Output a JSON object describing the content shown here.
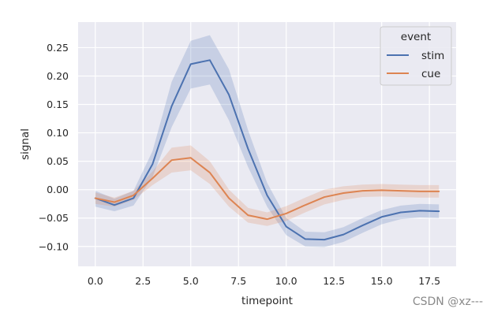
{
  "chart_data": {
    "type": "line",
    "title": "",
    "xlabel": "timepoint",
    "ylabel": "signal",
    "xlim": [
      -0.9,
      18.9
    ],
    "ylim": [
      -0.135,
      0.295
    ],
    "xticks": [
      0.0,
      2.5,
      5.0,
      7.5,
      10.0,
      12.5,
      15.0,
      17.5
    ],
    "xtick_labels": [
      "0.0",
      "2.5",
      "5.0",
      "7.5",
      "10.0",
      "12.5",
      "15.0",
      "17.5"
    ],
    "yticks": [
      -0.1,
      -0.05,
      0.0,
      0.05,
      0.1,
      0.15,
      0.2,
      0.25
    ],
    "ytick_labels": [
      "−0.10",
      "−0.05",
      "0.00",
      "0.05",
      "0.10",
      "0.15",
      "0.20",
      "0.25"
    ],
    "grid": true,
    "legend": {
      "title": "event",
      "placement": "top-right"
    },
    "x": [
      0,
      1,
      2,
      3,
      4,
      5,
      6,
      7,
      8,
      9,
      10,
      11,
      12,
      13,
      14,
      15,
      16,
      17,
      18
    ],
    "series": [
      {
        "name": "stim",
        "color": "#4c72b0",
        "values": [
          -0.015,
          -0.027,
          -0.015,
          0.045,
          0.147,
          0.221,
          0.228,
          0.167,
          0.072,
          -0.01,
          -0.065,
          -0.087,
          -0.088,
          -0.079,
          -0.063,
          -0.048,
          -0.04,
          -0.037,
          -0.038
        ],
        "ci_low": [
          -0.03,
          -0.038,
          -0.028,
          0.022,
          0.11,
          0.178,
          0.185,
          0.122,
          0.04,
          -0.03,
          -0.08,
          -0.1,
          -0.101,
          -0.092,
          -0.076,
          -0.061,
          -0.052,
          -0.049,
          -0.05
        ],
        "ci_high": [
          -0.002,
          -0.016,
          -0.002,
          0.068,
          0.19,
          0.262,
          0.272,
          0.212,
          0.105,
          0.012,
          -0.05,
          -0.074,
          -0.075,
          -0.066,
          -0.05,
          -0.036,
          -0.028,
          -0.025,
          -0.026
        ]
      },
      {
        "name": "cue",
        "color": "#dd8452",
        "values": [
          -0.015,
          -0.022,
          -0.01,
          0.02,
          0.052,
          0.056,
          0.03,
          -0.015,
          -0.045,
          -0.052,
          -0.042,
          -0.027,
          -0.013,
          -0.006,
          -0.002,
          -0.001,
          -0.002,
          -0.003,
          -0.003
        ],
        "ci_low": [
          -0.025,
          -0.03,
          -0.018,
          0.008,
          0.03,
          0.034,
          0.01,
          -0.03,
          -0.058,
          -0.064,
          -0.055,
          -0.04,
          -0.026,
          -0.018,
          -0.013,
          -0.012,
          -0.013,
          -0.014,
          -0.014
        ],
        "ci_high": [
          -0.005,
          -0.014,
          -0.002,
          0.032,
          0.074,
          0.078,
          0.05,
          0.0,
          -0.032,
          -0.04,
          -0.029,
          -0.014,
          0.0,
          0.006,
          0.009,
          0.01,
          0.009,
          0.008,
          0.008
        ]
      }
    ]
  },
  "watermark": "CSDN @xz---"
}
